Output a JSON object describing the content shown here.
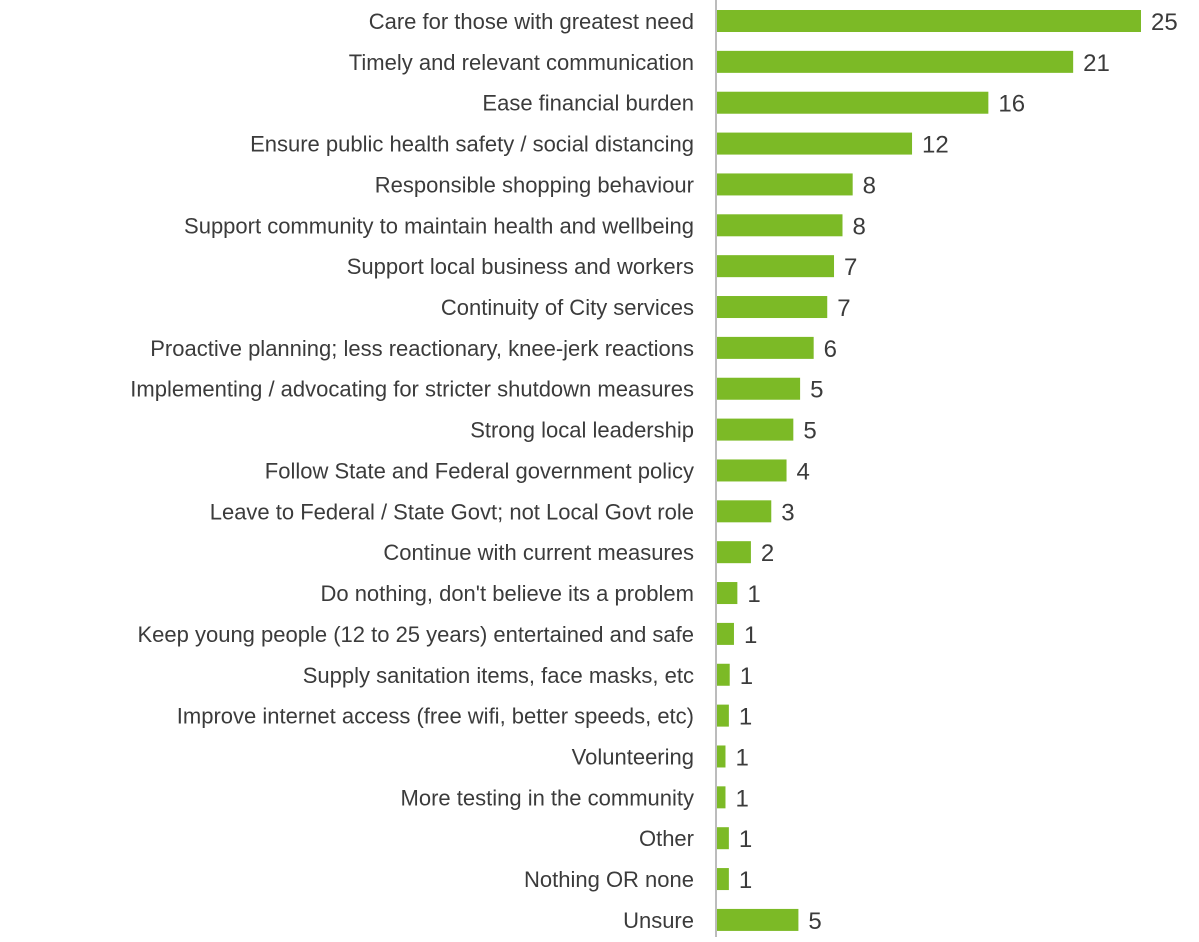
{
  "chart_data": {
    "type": "bar",
    "orientation": "horizontal",
    "categories": [
      "Care for those with greatest need",
      "Timely and relevant communication",
      "Ease financial burden",
      "Ensure public health safety / social distancing",
      "Responsible shopping behaviour",
      "Support community to maintain health and wellbeing",
      "Support local business and workers",
      "Continuity of City services",
      "Proactive planning; less reactionary, knee-jerk reactions",
      "Implementing / advocating for stricter shutdown measures",
      "Strong local leadership",
      "Follow State and Federal government policy",
      "Leave to Federal / State Govt; not Local Govt role",
      "Continue with current measures",
      "Do nothing, don't believe its a problem",
      "Keep young people (12 to 25 years) entertained and safe",
      "Supply sanitation items, face masks, etc",
      "Improve internet access (free wifi, better speeds, etc)",
      "Volunteering",
      "More testing in the community",
      "Other",
      "Nothing OR none",
      "Unsure"
    ],
    "values": [
      25,
      21,
      16,
      12,
      8,
      8,
      7,
      7,
      6,
      5,
      5,
      4,
      3,
      2,
      1,
      1,
      1,
      1,
      1,
      1,
      1,
      1,
      5
    ],
    "bar_lengths": [
      25,
      21,
      16,
      11.5,
      8,
      7.4,
      6.9,
      6.5,
      5.7,
      4.9,
      4.5,
      4.1,
      3.2,
      2.0,
      1.2,
      1.0,
      0.75,
      0.7,
      0.5,
      0.5,
      0.7,
      0.7,
      4.8
    ],
    "value_labels": [
      "25",
      "21",
      "16",
      "12",
      "8",
      "8",
      "7",
      "7",
      "6",
      "5",
      "5",
      "4",
      "3",
      "2",
      "1",
      "1",
      "1",
      "1",
      "1",
      "1",
      "1",
      "1",
      "5"
    ],
    "title": "",
    "xlabel": "",
    "ylabel": "",
    "xlim": [
      0,
      25
    ],
    "grid": false,
    "legend": "none",
    "bar_color": "#7cba26",
    "axis_color": "#a6a6a6",
    "text_color": "#3b3b3b"
  }
}
